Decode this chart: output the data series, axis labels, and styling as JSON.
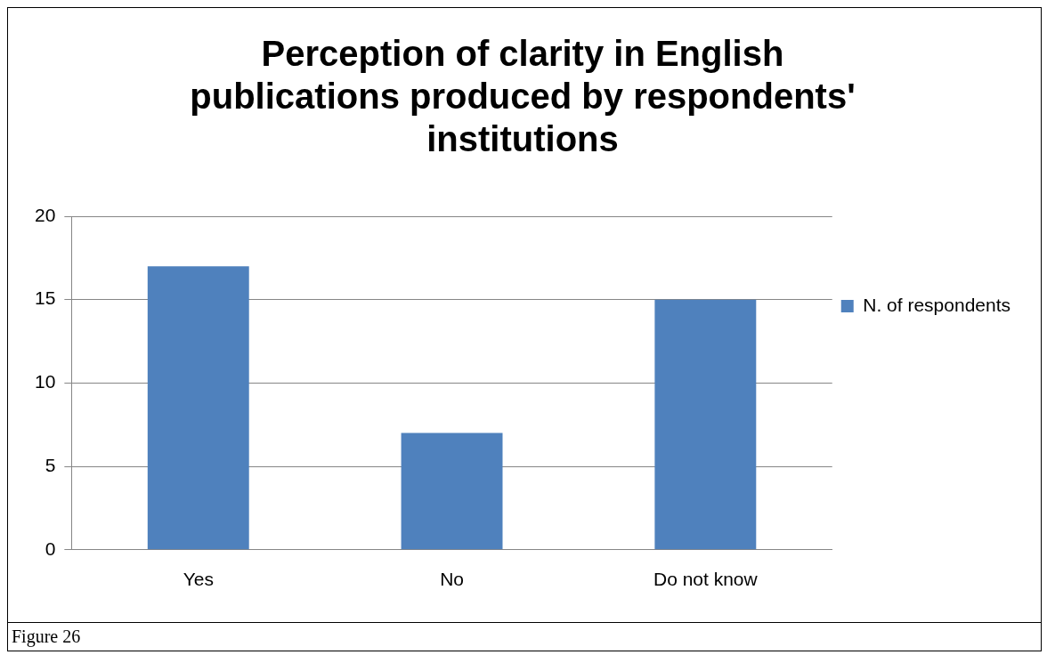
{
  "chart_data": {
    "type": "bar",
    "title": "Perception of clarity in English publications produced by respondents' institutions",
    "categories": [
      "Yes",
      "No",
      "Do not know"
    ],
    "series": [
      {
        "name": "N. of respondents",
        "color": "#4f81bd",
        "values": [
          17,
          7,
          15
        ]
      }
    ],
    "ylim": [
      0,
      20
    ],
    "yticks": [
      0,
      5,
      10,
      15,
      20
    ],
    "grid": "y",
    "legend": "right",
    "annotations": [
      "Figure 26"
    ]
  }
}
